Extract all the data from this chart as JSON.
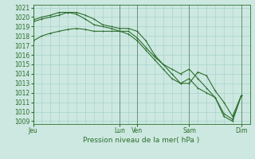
{
  "bg_color": "#cce8e0",
  "grid_color": "#a8d4cc",
  "line_color": "#2d6e2d",
  "dark_line_color": "#1a4a1a",
  "title": "Pression niveau de la mer( hPa )",
  "ylabel_min": 1009,
  "ylabel_max": 1021,
  "yticks": [
    1009,
    1010,
    1011,
    1012,
    1013,
    1014,
    1015,
    1016,
    1017,
    1018,
    1019,
    1020,
    1021
  ],
  "xtick_labels": [
    "Jeu",
    "Lun",
    "Ven",
    "Sam",
    "Dim"
  ],
  "xtick_positions": [
    0,
    60,
    72,
    108,
    144
  ],
  "vline_positions": [
    0,
    60,
    72,
    108,
    144
  ],
  "xmax": 150,
  "series1_x": [
    0,
    6,
    12,
    18,
    24,
    30,
    36,
    42,
    48,
    54,
    60,
    66,
    72,
    78,
    84,
    90,
    96,
    102,
    108,
    114,
    120,
    126,
    132,
    138,
    144
  ],
  "series1_y": [
    1019.7,
    1020.0,
    1020.2,
    1020.5,
    1020.5,
    1020.5,
    1020.2,
    1019.8,
    1019.2,
    1019.0,
    1018.8,
    1018.8,
    1018.5,
    1017.5,
    1016.0,
    1015.0,
    1014.0,
    1013.0,
    1013.0,
    1014.2,
    1013.8,
    1012.2,
    1011.0,
    1009.5,
    1011.7
  ],
  "series2_x": [
    0,
    6,
    12,
    18,
    24,
    30,
    36,
    42,
    48,
    54,
    60,
    66,
    72,
    78,
    84,
    90,
    96,
    102,
    108,
    114,
    120,
    126,
    132,
    138,
    144
  ],
  "series2_y": [
    1017.5,
    1018.0,
    1018.3,
    1018.5,
    1018.7,
    1018.8,
    1018.7,
    1018.5,
    1018.5,
    1018.5,
    1018.5,
    1018.2,
    1017.5,
    1016.5,
    1015.5,
    1014.5,
    1013.5,
    1013.0,
    1013.5,
    1012.5,
    1012.0,
    1011.5,
    1009.5,
    1009.0,
    1011.7
  ],
  "series3_x": [
    0,
    6,
    12,
    18,
    24,
    30,
    36,
    42,
    48,
    54,
    60,
    66,
    72,
    78,
    84,
    90,
    96,
    102,
    108,
    114,
    120,
    126,
    132,
    138,
    144
  ],
  "series3_y": [
    1019.5,
    1019.8,
    1020.0,
    1020.2,
    1020.5,
    1020.3,
    1019.8,
    1019.2,
    1019.0,
    1018.8,
    1018.5,
    1018.5,
    1017.8,
    1016.8,
    1015.8,
    1015.0,
    1014.5,
    1014.0,
    1014.5,
    1013.5,
    1012.5,
    1011.5,
    1009.8,
    1009.2,
    1011.7
  ],
  "title_fontsize": 6.5,
  "tick_fontsize": 5.5
}
